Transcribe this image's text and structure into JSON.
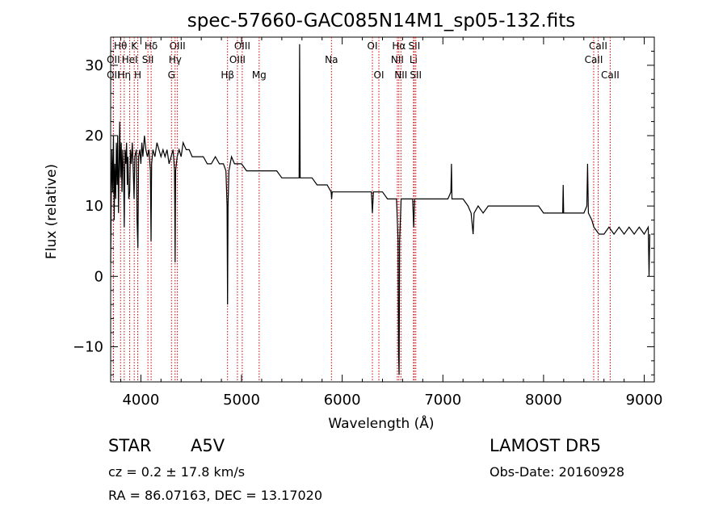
{
  "chart_data": {
    "type": "line",
    "title": "spec-57660-GAC085N14M1_sp05-132.fits",
    "xlabel": "Wavelength (Å)",
    "ylabel": "Flux (relative)",
    "xlim": [
      3700,
      9100
    ],
    "ylim": [
      -15,
      34
    ],
    "xticks": [
      4000,
      5000,
      6000,
      7000,
      8000,
      9000
    ],
    "yticks": [
      -10,
      0,
      10,
      20,
      30
    ],
    "grid": false,
    "series": [
      {
        "points": [
          [
            3700,
            2
          ],
          [
            3705,
            10
          ],
          [
            3712,
            18
          ],
          [
            3720,
            12
          ],
          [
            3728,
            20
          ],
          [
            3735,
            8
          ],
          [
            3742,
            16
          ],
          [
            3750,
            11
          ],
          [
            3757,
            19
          ],
          [
            3764,
            13
          ],
          [
            3770,
            20
          ],
          [
            3778,
            9
          ],
          [
            3785,
            17
          ],
          [
            3790,
            22
          ],
          [
            3797,
            14
          ],
          [
            3805,
            19
          ],
          [
            3812,
            12
          ],
          [
            3820,
            18
          ],
          [
            3828,
            15
          ],
          [
            3835,
            7
          ],
          [
            3842,
            18
          ],
          [
            3850,
            16
          ],
          [
            3858,
            19
          ],
          [
            3865,
            13
          ],
          [
            3872,
            17
          ],
          [
            3880,
            11
          ],
          [
            3889,
            12
          ],
          [
            3896,
            18
          ],
          [
            3905,
            16
          ],
          [
            3915,
            19
          ],
          [
            3925,
            15
          ],
          [
            3933,
            11
          ],
          [
            3940,
            17
          ],
          [
            3955,
            18
          ],
          [
            3962,
            8
          ],
          [
            3970,
            4
          ],
          [
            3978,
            17
          ],
          [
            3990,
            18
          ],
          [
            4000,
            16
          ],
          [
            4010,
            19
          ],
          [
            4020,
            17
          ],
          [
            4035,
            20
          ],
          [
            4050,
            18
          ],
          [
            4065,
            17
          ],
          [
            4080,
            18
          ],
          [
            4095,
            15
          ],
          [
            4101,
            5
          ],
          [
            4107,
            16
          ],
          [
            4120,
            18
          ],
          [
            4140,
            17
          ],
          [
            4160,
            19
          ],
          [
            4180,
            18
          ],
          [
            4200,
            17
          ],
          [
            4220,
            18
          ],
          [
            4240,
            17
          ],
          [
            4260,
            18
          ],
          [
            4280,
            16
          ],
          [
            4300,
            17
          ],
          [
            4320,
            18
          ],
          [
            4335,
            15
          ],
          [
            4340,
            2
          ],
          [
            4345,
            15
          ],
          [
            4360,
            17
          ],
          [
            4380,
            18
          ],
          [
            4400,
            17
          ],
          [
            4420,
            19
          ],
          [
            4450,
            18
          ],
          [
            4480,
            18
          ],
          [
            4510,
            17
          ],
          [
            4540,
            17
          ],
          [
            4580,
            17
          ],
          [
            4620,
            17
          ],
          [
            4660,
            16
          ],
          [
            4700,
            16
          ],
          [
            4740,
            17
          ],
          [
            4780,
            16
          ],
          [
            4820,
            16
          ],
          [
            4845,
            15
          ],
          [
            4856,
            10
          ],
          [
            4861,
            -4
          ],
          [
            4866,
            10
          ],
          [
            4875,
            15
          ],
          [
            4900,
            17
          ],
          [
            4930,
            16
          ],
          [
            4960,
            16
          ],
          [
            5000,
            16
          ],
          [
            5050,
            15
          ],
          [
            5100,
            15
          ],
          [
            5150,
            15
          ],
          [
            5200,
            15
          ],
          [
            5250,
            15
          ],
          [
            5300,
            15
          ],
          [
            5350,
            15
          ],
          [
            5400,
            14
          ],
          [
            5450,
            14
          ],
          [
            5500,
            14
          ],
          [
            5550,
            14
          ],
          [
            5572,
            14
          ],
          [
            5577,
            33
          ],
          [
            5582,
            14
          ],
          [
            5600,
            14
          ],
          [
            5650,
            14
          ],
          [
            5700,
            14
          ],
          [
            5750,
            13
          ],
          [
            5800,
            13
          ],
          [
            5850,
            13
          ],
          [
            5890,
            12
          ],
          [
            5895,
            11
          ],
          [
            5900,
            12
          ],
          [
            5950,
            12
          ],
          [
            6000,
            12
          ],
          [
            6050,
            12
          ],
          [
            6100,
            12
          ],
          [
            6150,
            12
          ],
          [
            6200,
            12
          ],
          [
            6250,
            12
          ],
          [
            6290,
            12
          ],
          [
            6300,
            9
          ],
          [
            6310,
            12
          ],
          [
            6350,
            12
          ],
          [
            6400,
            12
          ],
          [
            6450,
            11
          ],
          [
            6500,
            11
          ],
          [
            6540,
            11
          ],
          [
            6555,
            5
          ],
          [
            6560,
            -11
          ],
          [
            6565,
            -14
          ],
          [
            6570,
            5
          ],
          [
            6585,
            11
          ],
          [
            6620,
            11
          ],
          [
            6660,
            11
          ],
          [
            6700,
            11
          ],
          [
            6710,
            7
          ],
          [
            6720,
            11
          ],
          [
            6760,
            11
          ],
          [
            6800,
            11
          ],
          [
            6850,
            11
          ],
          [
            6900,
            11
          ],
          [
            6950,
            11
          ],
          [
            7000,
            11
          ],
          [
            7050,
            11
          ],
          [
            7080,
            12
          ],
          [
            7085,
            16
          ],
          [
            7090,
            11
          ],
          [
            7150,
            11
          ],
          [
            7200,
            11
          ],
          [
            7250,
            10
          ],
          [
            7280,
            9
          ],
          [
            7300,
            6
          ],
          [
            7310,
            9
          ],
          [
            7350,
            10
          ],
          [
            7400,
            9
          ],
          [
            7450,
            10
          ],
          [
            7500,
            10
          ],
          [
            7550,
            10
          ],
          [
            7600,
            10
          ],
          [
            7650,
            10
          ],
          [
            7700,
            10
          ],
          [
            7750,
            10
          ],
          [
            7800,
            10
          ],
          [
            7850,
            10
          ],
          [
            7900,
            10
          ],
          [
            7950,
            10
          ],
          [
            8000,
            9
          ],
          [
            8050,
            9
          ],
          [
            8100,
            9
          ],
          [
            8150,
            9
          ],
          [
            8190,
            9
          ],
          [
            8195,
            13
          ],
          [
            8200,
            9
          ],
          [
            8250,
            9
          ],
          [
            8300,
            9
          ],
          [
            8350,
            9
          ],
          [
            8400,
            9
          ],
          [
            8430,
            10
          ],
          [
            8437,
            16
          ],
          [
            8445,
            9
          ],
          [
            8480,
            8
          ],
          [
            8500,
            7
          ],
          [
            8550,
            6
          ],
          [
            8600,
            6
          ],
          [
            8650,
            7
          ],
          [
            8700,
            6
          ],
          [
            8750,
            7
          ],
          [
            8800,
            6
          ],
          [
            8850,
            7
          ],
          [
            8900,
            6
          ],
          [
            8950,
            7
          ],
          [
            9000,
            6
          ],
          [
            9040,
            7
          ],
          [
            9048,
            0
          ],
          [
            9055,
            6
          ]
        ]
      }
    ],
    "line_markers": [
      {
        "label": "Hθ",
        "x": 3798,
        "row": 1
      },
      {
        "label": "OII",
        "x": 3727,
        "row": 2
      },
      {
        "label": "HeI",
        "x": 3889,
        "row": 2
      },
      {
        "label": "OII",
        "x": 3727,
        "row": 3
      },
      {
        "label": "Hη",
        "x": 3835,
        "row": 3
      },
      {
        "label": "K",
        "x": 3934,
        "row": 1
      },
      {
        "label": "SII",
        "x": 4070,
        "row": 2
      },
      {
        "label": "H",
        "x": 3969,
        "row": 3
      },
      {
        "label": "Hδ",
        "x": 4102,
        "row": 1
      },
      {
        "label": "OIII",
        "x": 4363,
        "row": 1
      },
      {
        "label": "Hγ",
        "x": 4340,
        "row": 2
      },
      {
        "label": "G",
        "x": 4304,
        "row": 3
      },
      {
        "label": "OIII",
        "x": 5007,
        "row": 1
      },
      {
        "label": "OIII",
        "x": 4959,
        "row": 2
      },
      {
        "label": "Hβ",
        "x": 4861,
        "row": 3
      },
      {
        "label": "Mg",
        "x": 5175,
        "row": 3
      },
      {
        "label": "Na",
        "x": 5893,
        "row": 2
      },
      {
        "label": "OI",
        "x": 6300,
        "row": 1
      },
      {
        "label": "OI",
        "x": 6364,
        "row": 3
      },
      {
        "label": "Hα",
        "x": 6563,
        "row": 1
      },
      {
        "label": "SII",
        "x": 6716,
        "row": 1
      },
      {
        "label": "NII",
        "x": 6548,
        "row": 2
      },
      {
        "label": "Li",
        "x": 6708,
        "row": 2
      },
      {
        "label": "NII",
        "x": 6583,
        "row": 3
      },
      {
        "label": "SII",
        "x": 6731,
        "row": 3
      },
      {
        "label": "CaII",
        "x": 8542,
        "row": 1
      },
      {
        "label": "CaII",
        "x": 8498,
        "row": 2
      },
      {
        "label": "CaII",
        "x": 8662,
        "row": 3
      }
    ],
    "line_colors": {
      "marker": "#cc0000",
      "spectrum": "#000000"
    }
  },
  "footer": {
    "object_type": "STAR",
    "subclass": "A5V",
    "redshift": "cz = 0.2 ± 17.8 km/s",
    "coords": "RA =  86.07163, DEC =  13.17020",
    "survey": "LAMOST DR5",
    "obs_date": "Obs-Date: 20160928"
  }
}
